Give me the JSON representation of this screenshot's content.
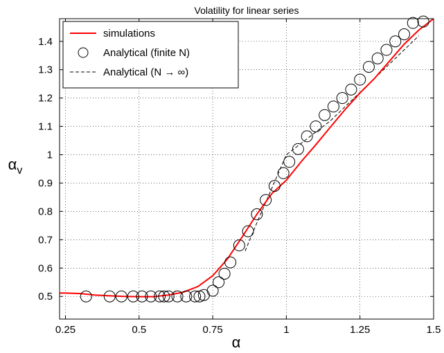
{
  "chart_data": {
    "type": "line",
    "title": "Volatility for linear series",
    "xlabel": "α",
    "ylabel_main": "α",
    "ylabel_sub": "v",
    "xlim": [
      0.23,
      1.5
    ],
    "ylim": [
      0.42,
      1.48
    ],
    "xticks": [
      0.25,
      0.5,
      0.75,
      1,
      1.25,
      1.5
    ],
    "xtick_labels": [
      "0.25",
      "0.5",
      "0.75",
      "1",
      "1.25",
      "1.5"
    ],
    "yticks": [
      0.5,
      0.6,
      0.7,
      0.8,
      0.9,
      1.0,
      1.1,
      1.2,
      1.3,
      1.4
    ],
    "ytick_labels": [
      "0.5",
      "0.6",
      "0.7",
      "0.8",
      "0.9",
      "1",
      "1.1",
      "1.2",
      "1.3",
      "1.4"
    ],
    "grid": true,
    "legend_position": "top-left",
    "colors": {
      "simulations": "#ff0000",
      "finite": "#000000",
      "infinite": "#000000"
    },
    "series": [
      {
        "name": "simulations",
        "style": "solid-red-line",
        "x": [
          0.23,
          0.25,
          0.3,
          0.35,
          0.4,
          0.45,
          0.5,
          0.55,
          0.6,
          0.65,
          0.7,
          0.75,
          0.8,
          0.85,
          0.9,
          0.95,
          1.0,
          1.05,
          1.1,
          1.15,
          1.2,
          1.25,
          1.3,
          1.35,
          1.4,
          1.45,
          1.5
        ],
        "y": [
          0.512,
          0.512,
          0.51,
          0.505,
          0.502,
          0.5,
          0.499,
          0.499,
          0.505,
          0.515,
          0.535,
          0.573,
          0.632,
          0.71,
          0.79,
          0.862,
          0.91,
          0.975,
          1.035,
          1.098,
          1.16,
          1.218,
          1.27,
          1.33,
          1.39,
          1.44,
          1.48
        ]
      },
      {
        "name": "Analytical (finite N)",
        "style": "open-circles",
        "x": [
          0.32,
          0.4,
          0.44,
          0.48,
          0.51,
          0.54,
          0.57,
          0.585,
          0.6,
          0.63,
          0.66,
          0.69,
          0.705,
          0.72,
          0.75,
          0.77,
          0.79,
          0.81,
          0.84,
          0.87,
          0.9,
          0.93,
          0.96,
          0.99,
          1.01,
          1.04,
          1.07,
          1.1,
          1.13,
          1.16,
          1.19,
          1.22,
          1.25,
          1.28,
          1.31,
          1.34,
          1.37,
          1.4,
          1.43,
          1.465
        ],
        "y": [
          0.5,
          0.5,
          0.5,
          0.5,
          0.5,
          0.5,
          0.5,
          0.5,
          0.5,
          0.5,
          0.5,
          0.5,
          0.5,
          0.505,
          0.52,
          0.55,
          0.58,
          0.62,
          0.68,
          0.73,
          0.79,
          0.84,
          0.89,
          0.935,
          0.975,
          1.02,
          1.065,
          1.1,
          1.14,
          1.17,
          1.2,
          1.23,
          1.265,
          1.31,
          1.34,
          1.37,
          1.4,
          1.425,
          1.465,
          1.47
        ]
      },
      {
        "name": "Analytical (N → ∞)",
        "style": "dashed-black-line",
        "x": [
          0.86,
          0.9,
          0.95,
          1.0,
          1.05,
          1.1,
          1.15,
          1.2,
          1.25,
          1.3,
          1.35,
          1.4,
          1.45
        ],
        "y": [
          0.66,
          0.76,
          0.88,
          1.0,
          1.04,
          1.08,
          1.12,
          1.17,
          1.22,
          1.27,
          1.32,
          1.37,
          1.42
        ]
      }
    ],
    "legend": [
      {
        "label": "simulations",
        "marker": "line-red"
      },
      {
        "label": "Analytical (finite N)",
        "marker": "circle"
      },
      {
        "label": "Analytical (N → ∞)",
        "marker": "dashed"
      }
    ]
  }
}
